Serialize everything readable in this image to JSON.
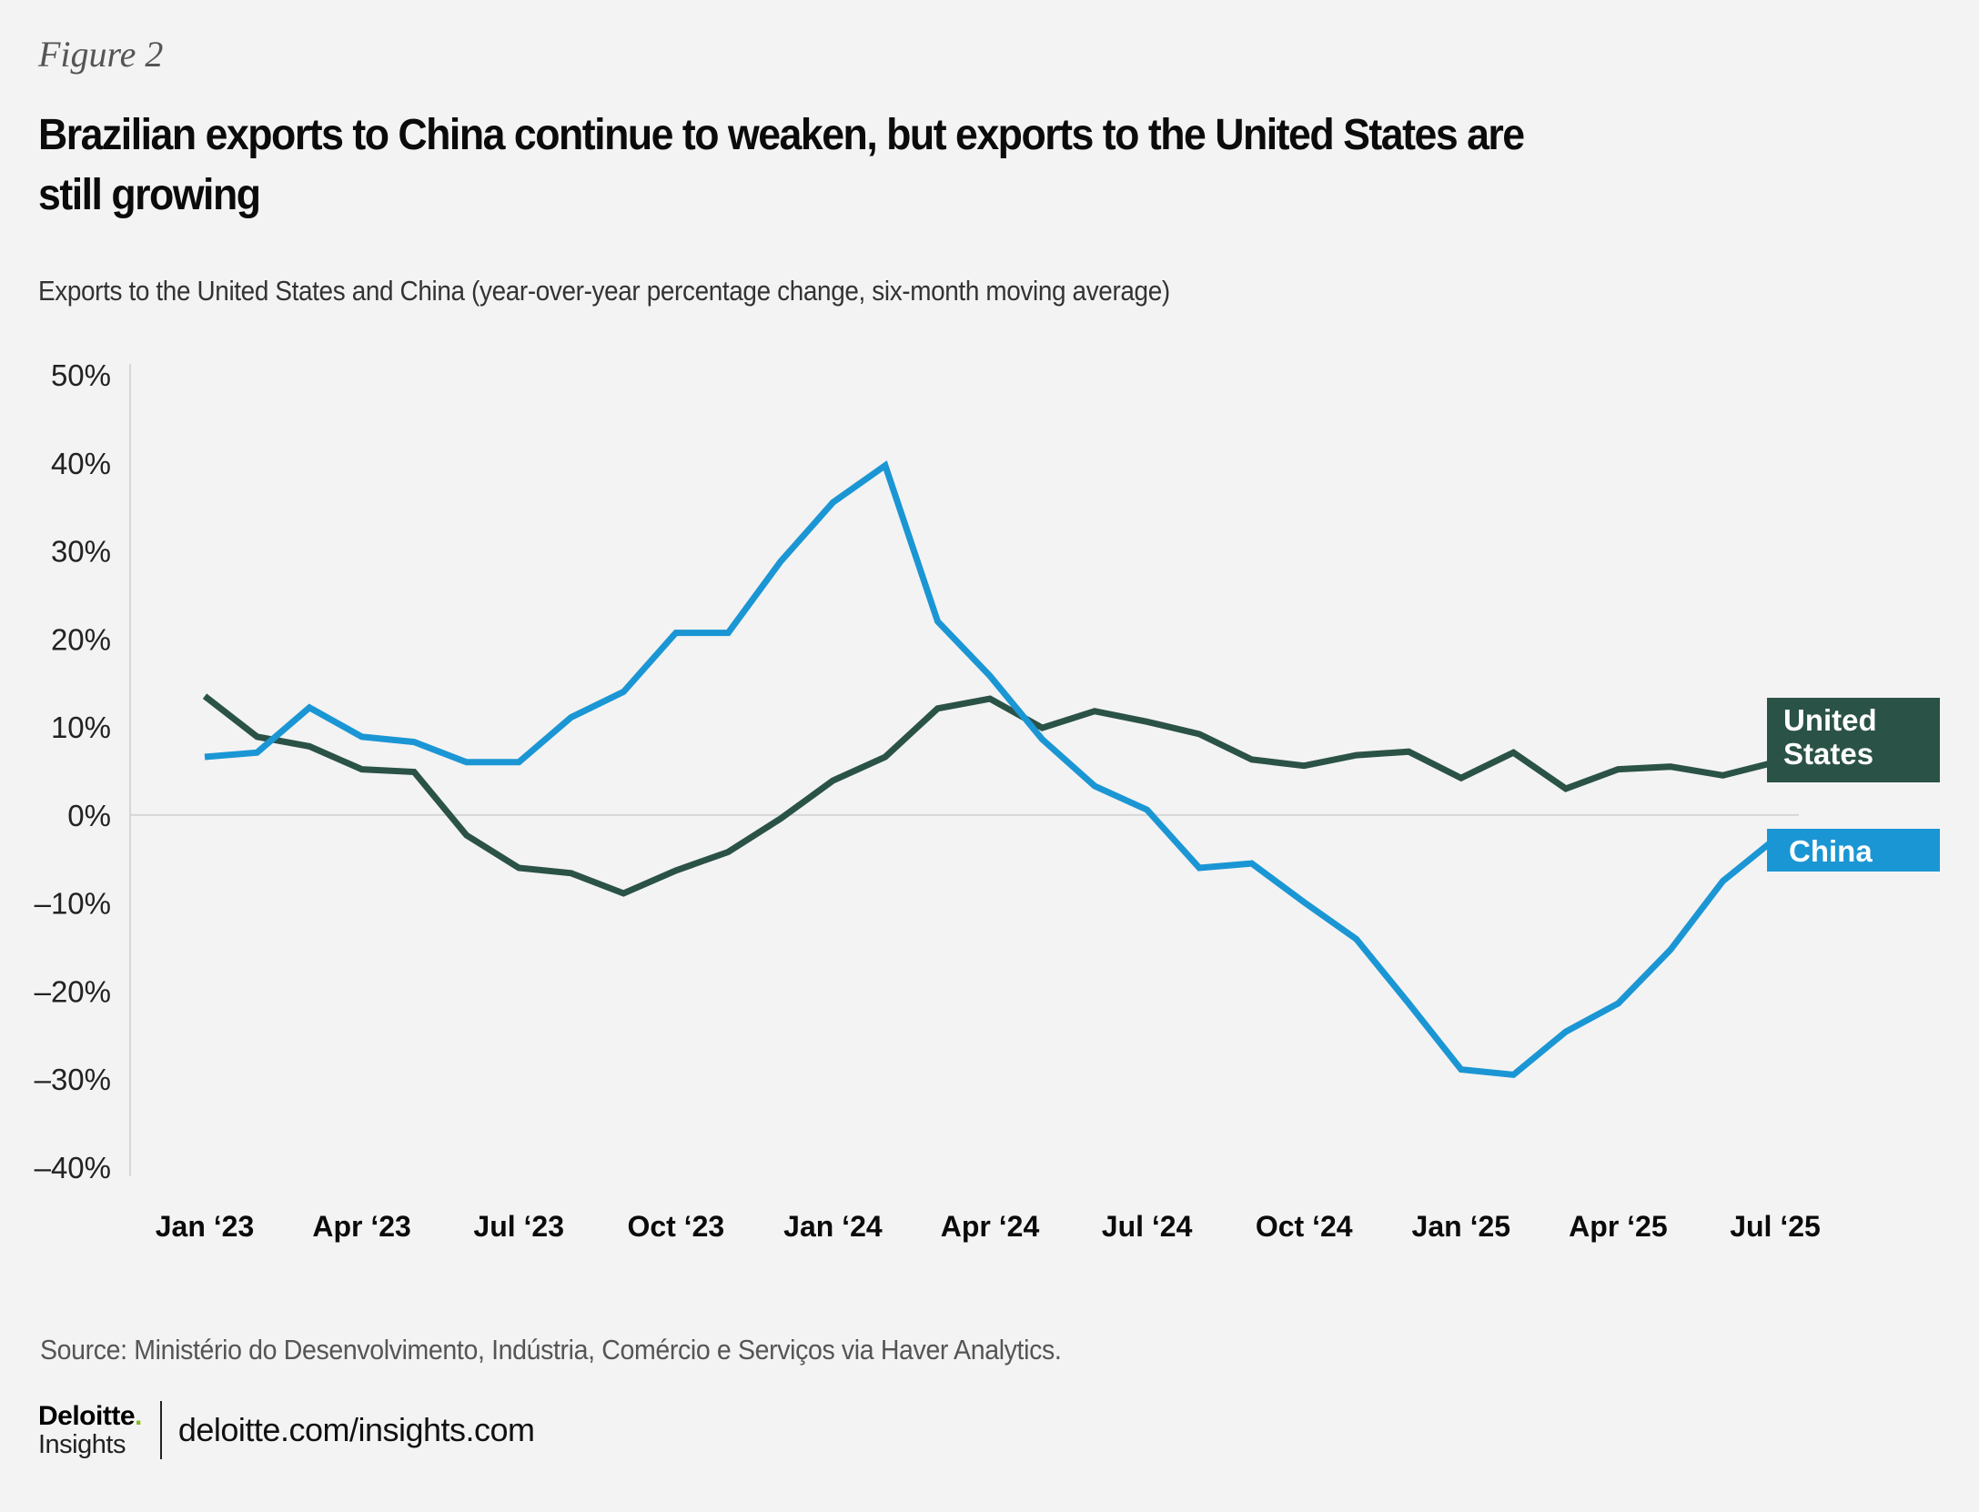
{
  "figure_label": "Figure 2",
  "title_line1": "Brazilian exports to China continue to weaken, but exports to the United States are",
  "title_line2": "still growing",
  "subtitle": "Exports to the United States and China (year-over-year percentage change, six-month moving average)",
  "source": "Source: Ministério do Desenvolvimento, Indústria, Comércio e Serviços via Haver Analytics.",
  "footer": {
    "logo_main": "Deloitte",
    "logo_dot": ".",
    "logo_sub": "Insights",
    "url": "deloitte.com/insights.com"
  },
  "chart_data": {
    "type": "line",
    "title": "Brazilian exports to China continue to weaken, but exports to the United States are still growing",
    "xlabel": "",
    "ylabel": "Year-over-year percentage change, six-month moving average",
    "ylim": [
      -40,
      50
    ],
    "yticks": [
      50,
      40,
      30,
      20,
      10,
      0,
      -10,
      -20,
      -30,
      -40
    ],
    "ytick_labels": [
      "50%",
      "40%",
      "30%",
      "20%",
      "10%",
      "0%",
      "–10%",
      "–20%",
      "–30%",
      "–40%"
    ],
    "grid": false,
    "zero_line": true,
    "x": [
      "Jan 2023",
      "Feb 2023",
      "Mar 2023",
      "Apr 2023",
      "May 2023",
      "Jun 2023",
      "Jul 2023",
      "Aug 2023",
      "Sep 2023",
      "Oct 2023",
      "Nov 2023",
      "Dec 2023",
      "Jan 2024",
      "Feb 2024",
      "Mar 2024",
      "Apr 2024",
      "May 2024",
      "Jun 2024",
      "Jul 2024",
      "Aug 2024",
      "Sep 2024",
      "Oct 2024",
      "Nov 2024",
      "Dec 2024",
      "Jan 2025",
      "Feb 2025",
      "Mar 2025",
      "Apr 2025",
      "May 2025",
      "Jun 2025",
      "Jul 2025"
    ],
    "xtick_labels": [
      {
        "index": 0,
        "label": "Jan ‘23"
      },
      {
        "index": 3,
        "label": "Apr ‘23"
      },
      {
        "index": 6,
        "label": "Jul ‘23"
      },
      {
        "index": 9,
        "label": "Oct ‘23"
      },
      {
        "index": 12,
        "label": "Jan ‘24"
      },
      {
        "index": 15,
        "label": "Apr ‘24"
      },
      {
        "index": 18,
        "label": "Jul ‘24"
      },
      {
        "index": 21,
        "label": "Oct ‘24"
      },
      {
        "index": 24,
        "label": "Jan ‘25"
      },
      {
        "index": 27,
        "label": "Apr ‘25"
      },
      {
        "index": 30,
        "label": "Jul ‘25"
      }
    ],
    "series": [
      {
        "name": "United States",
        "label_lines": [
          "United",
          "States"
        ],
        "color": "#2b5246",
        "values": [
          13.5,
          8.9,
          7.8,
          5.2,
          4.9,
          -2.3,
          -6.0,
          -6.6,
          -8.9,
          -6.3,
          -4.2,
          -0.4,
          3.9,
          6.6,
          12.1,
          13.2,
          9.9,
          11.8,
          10.6,
          9.2,
          6.3,
          5.6,
          6.8,
          7.2,
          4.2,
          7.1,
          3.0,
          5.2,
          5.5,
          4.5,
          6.0
        ]
      },
      {
        "name": "China",
        "label_lines": [
          "China"
        ],
        "color": "#1b96d4",
        "values": [
          6.6,
          7.1,
          12.2,
          8.9,
          8.3,
          6.0,
          6.0,
          11.1,
          14.0,
          20.7,
          20.7,
          28.8,
          35.5,
          39.7,
          22.0,
          15.8,
          8.6,
          3.3,
          0.6,
          -6.0,
          -5.5,
          -9.9,
          -14.1,
          -21.4,
          -28.9,
          -29.5,
          -24.6,
          -21.4,
          -15.3,
          -7.5,
          -2.7
        ]
      }
    ],
    "legend": "direct-labels-right"
  }
}
